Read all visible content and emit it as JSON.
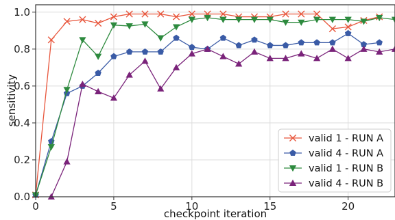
{
  "chart_data": {
    "type": "line",
    "xlabel": "checkpoint iteration",
    "ylabel": "sensitivity",
    "xlim": [
      0,
      23
    ],
    "ylim": [
      0,
      1.04
    ],
    "x_ticks": [
      0,
      5,
      10,
      15,
      20
    ],
    "y_ticks": [
      0.0,
      0.2,
      0.4,
      0.6,
      0.8,
      1.0
    ],
    "x_tick_labels": [
      "0",
      "5",
      "10",
      "15",
      "20"
    ],
    "y_tick_labels": [
      "0.0",
      "0.2",
      "0.4",
      "0.6",
      "0.8",
      "1.0"
    ],
    "grid": true,
    "legend_position": "lower-right",
    "series": [
      {
        "name": "valid 1 - RUN A",
        "color": "#e8553b",
        "marker": "x",
        "x": [
          0,
          1,
          2,
          3,
          4,
          5,
          6,
          7,
          8,
          9,
          10,
          11,
          12,
          13,
          14,
          15,
          16,
          17,
          18,
          19,
          20,
          21,
          22
        ],
        "y": [
          0.01,
          0.85,
          0.95,
          0.96,
          0.94,
          0.975,
          0.99,
          0.99,
          0.99,
          0.975,
          0.99,
          0.99,
          0.99,
          0.975,
          0.975,
          0.975,
          0.99,
          0.99,
          0.99,
          0.91,
          0.92,
          0.955,
          0.975
        ]
      },
      {
        "name": "valid 4 - RUN A",
        "color": "#3a5ba6",
        "marker": "pentagon",
        "x": [
          0,
          1,
          2,
          3,
          4,
          5,
          6,
          7,
          8,
          9,
          10,
          11,
          12,
          13,
          14,
          15,
          16,
          17,
          18,
          19,
          20,
          21,
          22
        ],
        "y": [
          0.01,
          0.3,
          0.56,
          0.6,
          0.67,
          0.76,
          0.785,
          0.785,
          0.785,
          0.86,
          0.81,
          0.8,
          0.86,
          0.82,
          0.85,
          0.82,
          0.82,
          0.835,
          0.835,
          0.835,
          0.885,
          0.825,
          0.835
        ]
      },
      {
        "name": "valid 1 - RUN B",
        "color": "#2d8a3e",
        "marker": "triangle-down",
        "x": [
          0,
          1,
          2,
          3,
          4,
          5,
          6,
          7,
          8,
          9,
          10,
          11,
          12,
          13,
          14,
          15,
          16,
          17,
          18,
          19,
          20,
          21,
          22,
          23
        ],
        "y": [
          0.01,
          0.27,
          0.58,
          0.85,
          0.76,
          0.93,
          0.925,
          0.935,
          0.86,
          0.92,
          0.96,
          0.97,
          0.96,
          0.96,
          0.96,
          0.96,
          0.945,
          0.945,
          0.96,
          0.96,
          0.96,
          0.95,
          0.97,
          0.96
        ]
      },
      {
        "name": "valid 4 - RUN B",
        "color": "#7a237a",
        "marker": "triangle-up",
        "x": [
          1,
          2,
          3,
          4,
          5,
          6,
          7,
          8,
          9,
          10,
          11,
          12,
          13,
          14,
          15,
          16,
          17,
          18,
          19,
          20,
          21,
          22,
          23
        ],
        "y": [
          0.0,
          0.19,
          0.61,
          0.57,
          0.535,
          0.66,
          0.735,
          0.585,
          0.7,
          0.775,
          0.8,
          0.76,
          0.72,
          0.785,
          0.75,
          0.75,
          0.775,
          0.75,
          0.8,
          0.75,
          0.8,
          0.785,
          0.8
        ]
      }
    ]
  }
}
